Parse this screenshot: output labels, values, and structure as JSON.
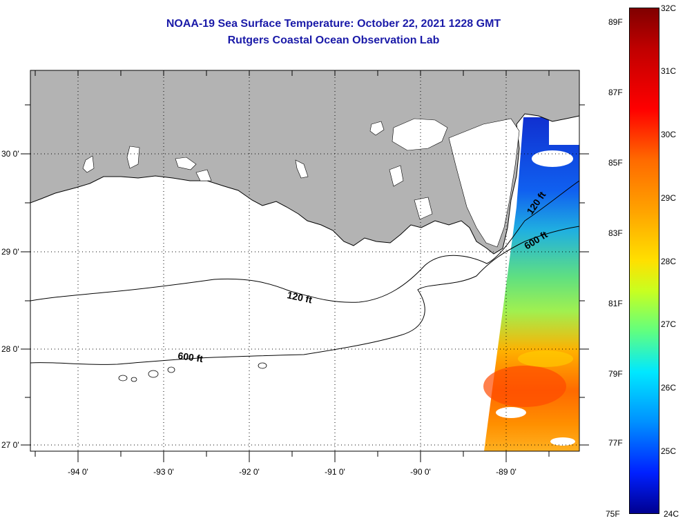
{
  "header": {
    "title_line1": "NOAA-19 Sea Surface Temperature:  October 22, 2021 1228 GMT",
    "title_line2": "Rutgers Coastal Ocean Observation Lab"
  },
  "map": {
    "lat_labels": [
      "30 0'",
      "29 0'",
      "28 0'",
      "27 0'"
    ],
    "lon_labels": [
      "-94 0'",
      "-93 0'",
      "-92 0'",
      "-91 0'",
      "-90 0'",
      "-89 0'"
    ],
    "contour_labels": [
      "120 ft",
      "600 ft",
      "120 ft",
      "600 ft"
    ],
    "colors": {
      "land": "#b3b3b3",
      "cloud": "#ffffff",
      "ocean_nodata": "#ffffff"
    }
  },
  "colorbar": {
    "fahrenheit": [
      "89F",
      "87F",
      "85F",
      "83F",
      "81F",
      "79F",
      "77F",
      "75F"
    ],
    "celsius": [
      "32C",
      "31C",
      "30C",
      "29C",
      "28C",
      "27C",
      "26C",
      "25C",
      "24C"
    ]
  }
}
